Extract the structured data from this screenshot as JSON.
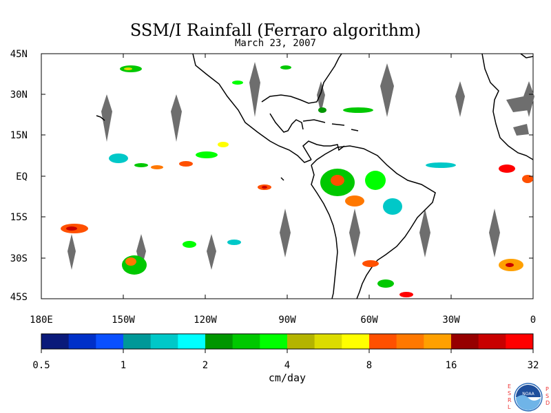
{
  "title": "SSM/I Rainfall (Ferraro algorithm)",
  "subtitle": "March 23, 2007",
  "lat_labels": [
    "45N",
    "30N",
    "15N",
    "EQ",
    "15S",
    "30S",
    "45S"
  ],
  "lon_labels": [
    "180E",
    "150W",
    "120W",
    "90W",
    "60W",
    "30W",
    "0"
  ],
  "colorbar": {
    "units": "cm/day",
    "tick_labels": [
      "0.5",
      "1",
      "2",
      "4",
      "8",
      "16",
      "32"
    ],
    "colors": [
      "#0a1a7a",
      "#0030c8",
      "#0a50ff",
      "#009898",
      "#00c8c8",
      "#00ffff",
      "#009600",
      "#00c800",
      "#00ff00",
      "#b4b400",
      "#dcdc00",
      "#ffff00",
      "#ff5000",
      "#ff7800",
      "#ffa000",
      "#960000",
      "#c80000",
      "#ff0000"
    ]
  },
  "logo": {
    "left_letters": [
      "E",
      "S",
      "R",
      "L"
    ],
    "right_letters": [
      "P",
      "S",
      "D"
    ],
    "badge_text": "NOAA"
  },
  "colors": {
    "land_outline": "#000000",
    "missing_swath": "#6e6e6e",
    "background": "#ffffff"
  }
}
